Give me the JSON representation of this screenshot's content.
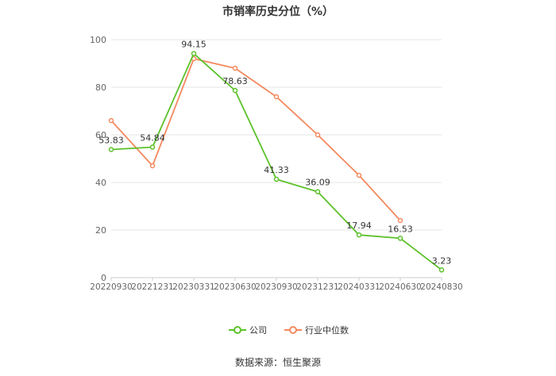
{
  "source": "数据来源：恒生聚源",
  "chart_data": {
    "type": "line",
    "title": "市销率历史分位（%）",
    "xlabel": "",
    "ylabel": "",
    "ylim": [
      0,
      100
    ],
    "yticks": [
      0,
      20,
      40,
      60,
      80,
      100
    ],
    "grid": true,
    "legend_position": "bottom-center",
    "categories": [
      "20220930",
      "20221231",
      "20230331",
      "20230630",
      "20230930",
      "20231231",
      "20240331",
      "20240630",
      "20240830"
    ],
    "series": [
      {
        "name": "公司",
        "color": "#5cc12a",
        "values": [
          53.83,
          54.84,
          94.15,
          78.63,
          41.33,
          36.09,
          17.94,
          16.53,
          3.23
        ],
        "labels": [
          "53.83",
          "54.84",
          "94.15",
          "78.63",
          "41.33",
          "36.09",
          "17.94",
          "16.53",
          "3.23"
        ]
      },
      {
        "name": "行业中位数",
        "color": "#f4895f",
        "values": [
          66,
          47,
          92,
          88,
          76,
          60,
          43,
          24,
          null
        ]
      }
    ]
  }
}
